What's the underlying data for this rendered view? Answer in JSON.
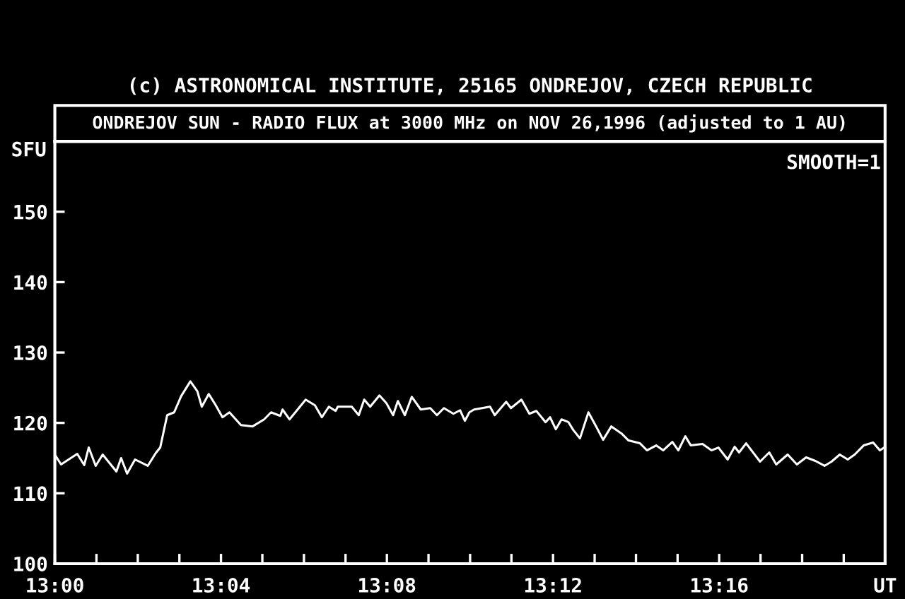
{
  "chart_data": {
    "type": "line",
    "title": "(c) ASTRONOMICAL INSTITUTE, 25165 ONDREJOV, CZECH REPUBLIC",
    "subtitle": "ONDREJOV SUN - RADIO FLUX at 3000 MHz on NOV 26,1996 (adjusted to 1 AU)",
    "ylabel": "SFU",
    "annotations": [
      "SMOOTH=1"
    ],
    "series": [
      {
        "color": "#ffffff",
        "x": [
          13.0,
          13.0025,
          13.009,
          13.0118,
          13.0136,
          13.0164,
          13.0192,
          13.0247,
          13.0266,
          13.029,
          13.0322,
          13.0373,
          13.0405,
          13.0423,
          13.0451,
          13.0479,
          13.0507,
          13.0544,
          13.0572,
          13.059,
          13.0618,
          13.0646,
          13.0673,
          13.0701,
          13.0747,
          13.0794,
          13.084,
          13.0868,
          13.0905,
          13.0914,
          13.0942,
          13.097,
          13.1007,
          13.1044,
          13.1072,
          13.11,
          13.1127,
          13.1136,
          13.1192,
          13.122,
          13.1242,
          13.1266,
          13.1303,
          13.1331,
          13.1358,
          13.1377,
          13.1405,
          13.1433,
          13.1469,
          13.1507,
          13.1534,
          13.1562,
          13.16,
          13.1627,
          13.1646,
          13.1664,
          13.1683,
          13.1747,
          13.1766,
          13.1812,
          13.1831,
          13.1873,
          13.1905,
          13.1933,
          13.197,
          13.1988,
          13.2011,
          13.2034,
          13.2062,
          13.2081,
          13.2108,
          13.2142,
          13.2173,
          13.2201,
          13.2234,
          13.2275,
          13.2303,
          13.2349,
          13.2377,
          13.2414,
          13.2442,
          13.2479,
          13.2503,
          13.2531,
          13.2553,
          13.26,
          13.2636,
          13.2664,
          13.2701,
          13.2729,
          13.2747,
          13.2775,
          13.2831,
          13.2868,
          13.2896,
          13.2942,
          13.2979,
          13.3016,
          13.3053,
          13.309,
          13.3118,
          13.3151,
          13.3183,
          13.3211,
          13.3247,
          13.3285,
          13.3312,
          13.333
        ],
        "values": [
          115.5,
          114.1,
          115.6,
          114,
          116.5,
          113.9,
          115.5,
          113.1,
          115,
          112.8,
          114.8,
          113.9,
          115.7,
          116.5,
          121.1,
          121.5,
          123.8,
          125.9,
          124.5,
          122.3,
          124.1,
          122.5,
          120.8,
          121.5,
          119.7,
          119.5,
          120.5,
          121.5,
          121,
          121.9,
          120.5,
          121.7,
          123.3,
          122.5,
          120.8,
          122.3,
          121.7,
          122.3,
          122.3,
          121.1,
          123.3,
          122.3,
          123.9,
          122.8,
          121.1,
          123.1,
          121.1,
          123.7,
          121.9,
          122.1,
          121.1,
          122.1,
          121.3,
          121.8,
          120.3,
          121.5,
          121.9,
          122.3,
          121.1,
          123,
          122.1,
          123.3,
          121.3,
          121.7,
          120.1,
          120.8,
          119.1,
          120.5,
          120.1,
          119,
          117.8,
          121.5,
          119.5,
          117.6,
          119.5,
          118.5,
          117.5,
          117.1,
          116.1,
          116.8,
          116.1,
          117.3,
          116.1,
          118.1,
          116.8,
          117,
          116.1,
          116.5,
          114.8,
          116.6,
          115.8,
          117.1,
          114.5,
          115.8,
          114.1,
          115.5,
          114.1,
          115.1,
          114.6,
          113.9,
          114.5,
          115.5,
          114.8,
          115.5,
          116.8,
          117.2,
          116.1,
          116.5
        ]
      }
    ],
    "xlim": [
      13.0,
      13.3333
    ],
    "xticks": [
      {
        "value": 13.0,
        "label": "13:00"
      },
      {
        "value": 13.0167,
        "label": null
      },
      {
        "value": 13.0333,
        "label": null
      },
      {
        "value": 13.05,
        "label": null
      },
      {
        "value": 13.0667,
        "label": "13:04"
      },
      {
        "value": 13.0833,
        "label": null
      },
      {
        "value": 13.1,
        "label": null
      },
      {
        "value": 13.1167,
        "label": null
      },
      {
        "value": 13.1333,
        "label": "13:08"
      },
      {
        "value": 13.15,
        "label": null
      },
      {
        "value": 13.1667,
        "label": null
      },
      {
        "value": 13.1833,
        "label": null
      },
      {
        "value": 13.2,
        "label": "13:12"
      },
      {
        "value": 13.2167,
        "label": null
      },
      {
        "value": 13.2333,
        "label": null
      },
      {
        "value": 13.25,
        "label": null
      },
      {
        "value": 13.2667,
        "label": "13:16"
      },
      {
        "value": 13.2833,
        "label": null
      },
      {
        "value": 13.3,
        "label": null
      },
      {
        "value": 13.3167,
        "label": null
      },
      {
        "value": 13.3333,
        "label": "UT"
      }
    ],
    "ylim": [
      100,
      160
    ],
    "yticks": [
      100,
      110,
      120,
      130,
      140,
      150
    ],
    "grid": false,
    "legend": false,
    "marker": "none",
    "line_style": "solid"
  }
}
